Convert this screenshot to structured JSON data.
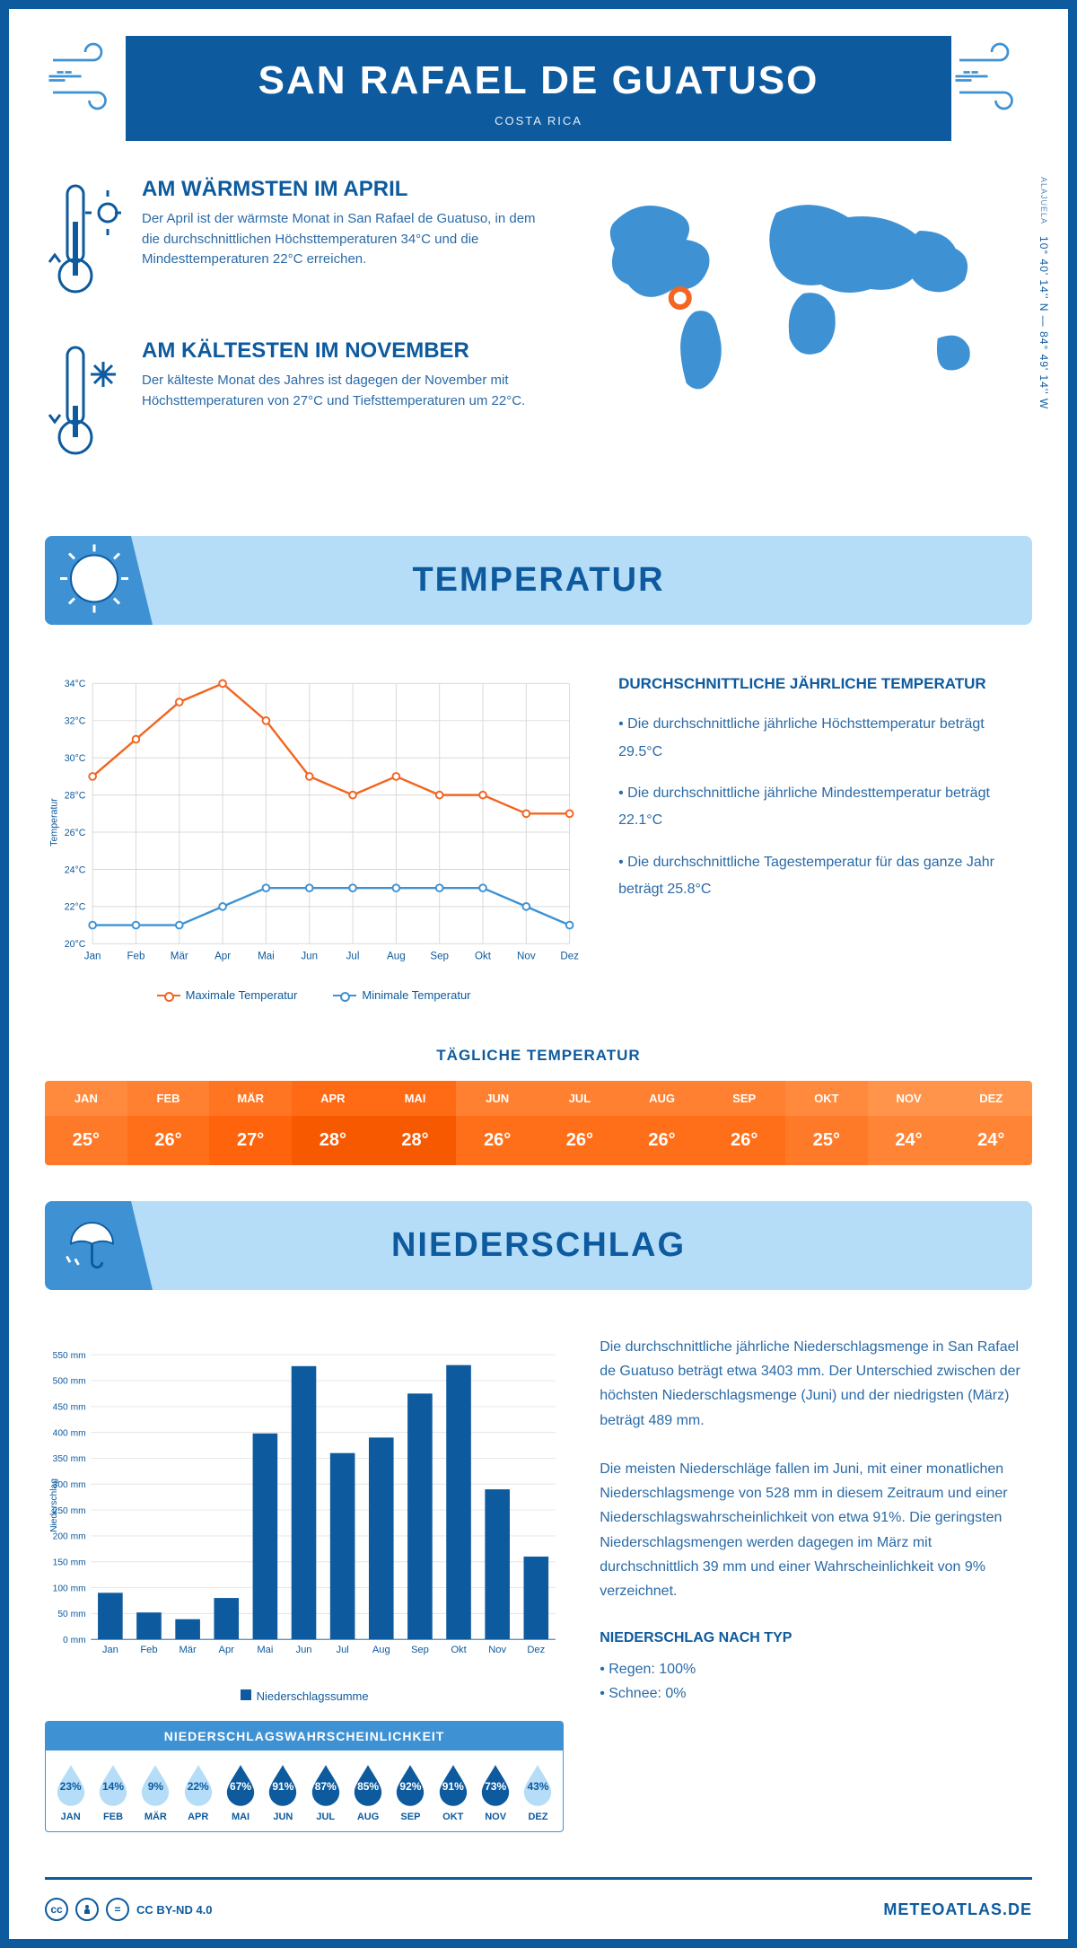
{
  "header": {
    "title": "SAN RAFAEL DE GUATUSO",
    "country": "COSTA RICA",
    "coords": "10° 40' 14'' N — 84° 49' 14'' W",
    "region": "ALAJUELA"
  },
  "intro": {
    "warm": {
      "title": "AM WÄRMSTEN IM APRIL",
      "text": "Der April ist der wärmste Monat in San Rafael de Guatuso, in dem die durchschnittlichen Höchsttemperaturen 34°C und die Mindesttemperaturen 22°C erreichen."
    },
    "cold": {
      "title": "AM KÄLTESTEN IM NOVEMBER",
      "text": "Der kälteste Monat des Jahres ist dagegen der November mit Höchsttemperaturen von 27°C und Tiefsttemperaturen um 22°C."
    }
  },
  "months": [
    "Jan",
    "Feb",
    "Mär",
    "Apr",
    "Mai",
    "Jun",
    "Jul",
    "Aug",
    "Sep",
    "Okt",
    "Nov",
    "Dez"
  ],
  "months_upper": [
    "JAN",
    "FEB",
    "MÄR",
    "APR",
    "MAI",
    "JUN",
    "JUL",
    "AUG",
    "SEP",
    "OKT",
    "NOV",
    "DEZ"
  ],
  "temperature": {
    "section_title": "TEMPERATUR",
    "max": [
      29,
      31,
      33,
      34,
      32,
      29,
      28,
      29,
      28,
      28,
      27,
      27
    ],
    "min": [
      21,
      21,
      21,
      22,
      23,
      23,
      23,
      23,
      23,
      23,
      22,
      21
    ],
    "ylim": [
      20,
      34
    ],
    "ytick_step": 2,
    "ylabel": "Temperatur",
    "max_color": "#f26522",
    "min_color": "#3e92d4",
    "grid_color": "#d9d9d9",
    "legend_max": "Maximale Temperatur",
    "legend_min": "Minimale Temperatur",
    "side_title": "DURCHSCHNITTLICHE JÄHRLICHE TEMPERATUR",
    "side_points": [
      "• Die durchschnittliche jährliche Höchsttemperatur beträgt 29.5°C",
      "• Die durchschnittliche jährliche Mindesttemperatur beträgt 22.1°C",
      "• Die durchschnittliche Tagestemperatur für das ganze Jahr beträgt 25.8°C"
    ],
    "daily_title": "TÄGLICHE TEMPERATUR",
    "daily_values": [
      25,
      26,
      27,
      28,
      28,
      26,
      26,
      26,
      26,
      25,
      24,
      24
    ],
    "daily_colors_header": [
      "#ff8a3d",
      "#ff8030",
      "#ff7522",
      "#ff6a14",
      "#ff6a14",
      "#ff8030",
      "#ff8030",
      "#ff8030",
      "#ff8030",
      "#ff8a3d",
      "#ff944a",
      "#ff944a"
    ],
    "daily_colors_value": [
      "#ff7a28",
      "#ff6f1a",
      "#ff640c",
      "#f75900",
      "#f75900",
      "#ff6f1a",
      "#ff6f1a",
      "#ff6f1a",
      "#ff6f1a",
      "#ff7a28",
      "#ff8436",
      "#ff8436"
    ]
  },
  "precip": {
    "section_title": "NIEDERSCHLAG",
    "values": [
      90,
      52,
      39,
      80,
      398,
      528,
      360,
      390,
      475,
      530,
      290,
      160
    ],
    "ylim": [
      0,
      550
    ],
    "ytick_step": 50,
    "ylabel": "Niederschlag",
    "bar_color": "#0d5a9e",
    "legend": "Niederschlagssumme",
    "text1": "Die durchschnittliche jährliche Niederschlagsmenge in San Rafael de Guatuso beträgt etwa 3403 mm. Der Unterschied zwischen der höchsten Niederschlagsmenge (Juni) und der niedrigsten (März) beträgt 489 mm.",
    "text2": "Die meisten Niederschläge fallen im Juni, mit einer monatlichen Niederschlagsmenge von 528 mm in diesem Zeitraum und einer Niederschlagswahrscheinlichkeit von etwa 91%. Die geringsten Niederschlagsmengen werden dagegen im März mit durchschnittlich 39 mm und einer Wahrscheinlichkeit von 9% verzeichnet.",
    "prob_title": "NIEDERSCHLAGSWAHRSCHEINLICHKEIT",
    "prob": [
      23,
      14,
      9,
      22,
      67,
      91,
      87,
      85,
      92,
      91,
      73,
      43
    ],
    "drop_dark": "#0d5a9e",
    "drop_light": "#b6ddf8",
    "type_title": "NIEDERSCHLAG NACH TYP",
    "type_points": [
      "• Regen: 100%",
      "• Schnee: 0%"
    ]
  },
  "footer": {
    "license": "CC BY-ND 4.0",
    "site": "METEOATLAS.DE"
  },
  "colors": {
    "primary": "#0d5a9e",
    "accent": "#3e92d4",
    "light": "#b6ddf8"
  }
}
